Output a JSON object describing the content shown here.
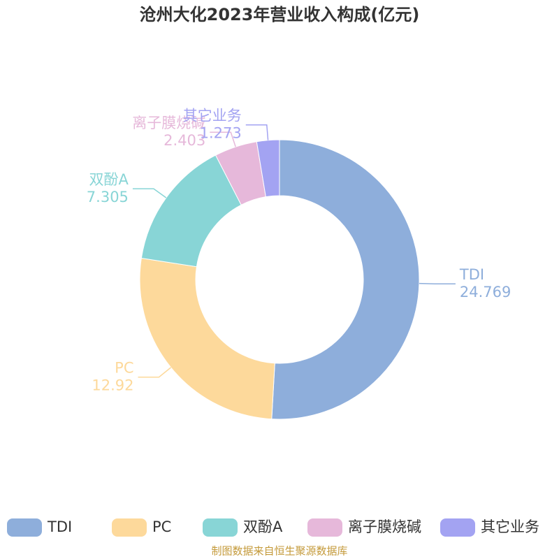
{
  "chart_data": {
    "type": "donut",
    "title": "沧州大化2023年营业收入构成(亿元)",
    "categories": [
      "TDI",
      "PC",
      "双酚A",
      "离子膜烧碱",
      "其它业务"
    ],
    "values": [
      24.769,
      12.92,
      7.305,
      2.403,
      1.273
    ],
    "colors": [
      "#8eaedb",
      "#fdd99b",
      "#88d5d6",
      "#e6b8da",
      "#a3a3f2"
    ],
    "legend": "bottom",
    "source": "制图数据来自恒生聚源数据库"
  }
}
